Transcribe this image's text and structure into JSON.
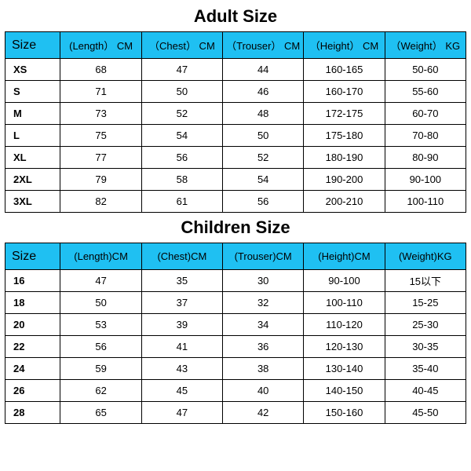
{
  "colors": {
    "header_bg": "#1fc0f2",
    "border": "#000000",
    "text": "#000000",
    "background": "#ffffff"
  },
  "adult": {
    "title": "Adult Size",
    "columns": [
      "Size",
      "(Length） CM",
      "（Chest） CM",
      "（Trouser） CM",
      "（Height） CM",
      "（Weight） KG"
    ],
    "rows": [
      [
        "XS",
        "68",
        "47",
        "44",
        "160-165",
        "50-60"
      ],
      [
        "S",
        "71",
        "50",
        "46",
        "160-170",
        "55-60"
      ],
      [
        "M",
        "73",
        "52",
        "48",
        "172-175",
        "60-70"
      ],
      [
        "L",
        "75",
        "54",
        "50",
        "175-180",
        "70-80"
      ],
      [
        "XL",
        "77",
        "56",
        "52",
        "180-190",
        "80-90"
      ],
      [
        "2XL",
        "79",
        "58",
        "54",
        "190-200",
        "90-100"
      ],
      [
        "3XL",
        "82",
        "61",
        "56",
        "200-210",
        "100-110"
      ]
    ]
  },
  "children": {
    "title": "Children Size",
    "columns": [
      "Size",
      "(Length)CM",
      "(Chest)CM",
      "(Trouser)CM",
      "(Height)CM",
      "(Weight)KG"
    ],
    "rows": [
      [
        "16",
        "47",
        "35",
        "30",
        "90-100",
        "15以下"
      ],
      [
        "18",
        "50",
        "37",
        "32",
        "100-110",
        "15-25"
      ],
      [
        "20",
        "53",
        "39",
        "34",
        "110-120",
        "25-30"
      ],
      [
        "22",
        "56",
        "41",
        "36",
        "120-130",
        "30-35"
      ],
      [
        "24",
        "59",
        "43",
        "38",
        "130-140",
        "35-40"
      ],
      [
        "26",
        "62",
        "45",
        "40",
        "140-150",
        "40-45"
      ],
      [
        "28",
        "65",
        "47",
        "42",
        "150-160",
        "45-50"
      ]
    ]
  },
  "col_widths_pct": [
    12,
    17.6,
    17.6,
    17.6,
    17.6,
    17.6
  ]
}
